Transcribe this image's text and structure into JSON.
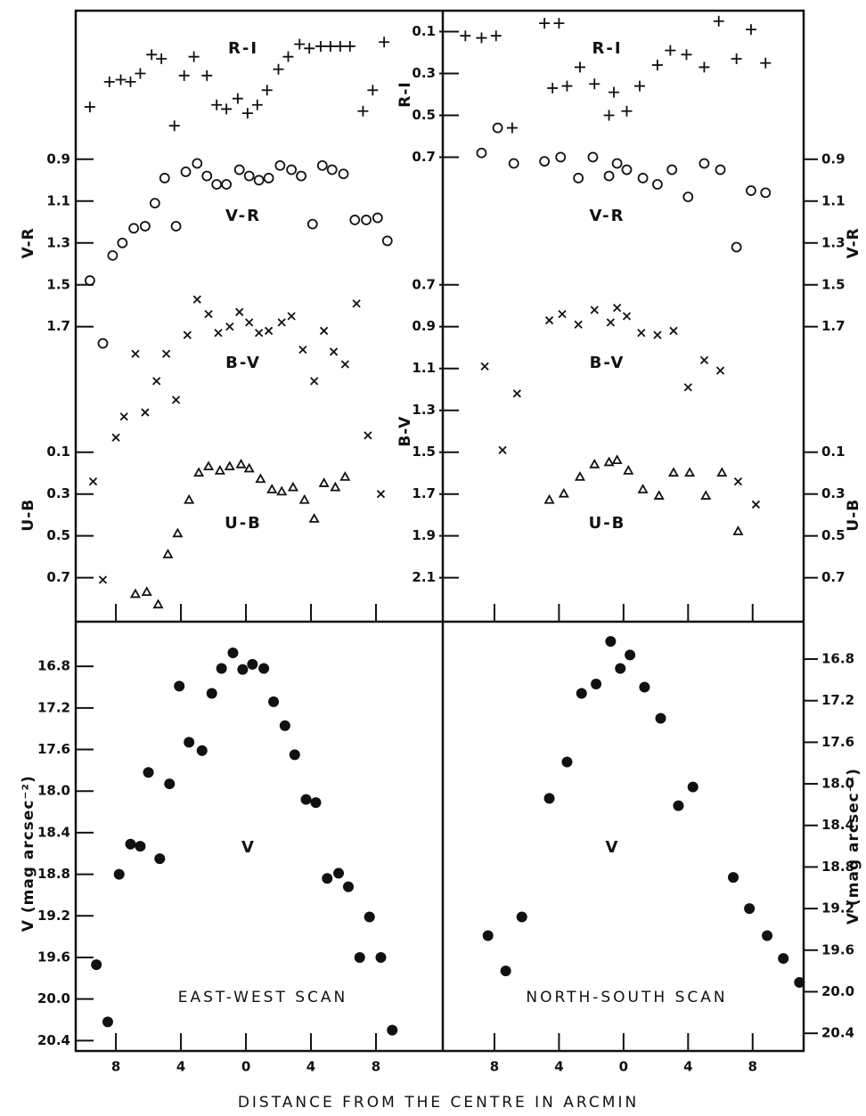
{
  "xlabel": "DISTANCE FROM THE CENTRE IN ARCMIN",
  "chart_data": [
    {
      "type": "scatter",
      "xlim": [
        -10.47,
        12.11
      ],
      "axes": [
        {
          "label": "V-R",
          "side": "left",
          "ylim": [
            3.11,
            0.19
          ],
          "yticks": [
            0.9,
            1.1,
            1.3,
            1.5,
            1.7
          ]
        },
        {
          "label": "U-B",
          "side": "left",
          "ylim": [
            0.91,
            -2.01
          ],
          "yticks": [
            0.1,
            0.3,
            0.5,
            0.7
          ]
        }
      ],
      "series": [
        {
          "name": "R-I",
          "marker": "plus",
          "ylim": [
            2.92,
            0
          ],
          "x": [
            -9.6,
            -8.4,
            -7.7,
            -7.1,
            -6.5,
            -5.8,
            -5.2,
            -4.4,
            -3.8,
            -3.2,
            -2.4,
            -1.8,
            -1.2,
            -0.5,
            0.1,
            0.7,
            1.3,
            2.0,
            2.6,
            3.3,
            3.9,
            4.6,
            5.2,
            5.8,
            6.4,
            7.2,
            7.8,
            8.5
          ],
          "values": [
            0.46,
            0.34,
            0.33,
            0.34,
            0.3,
            0.21,
            0.23,
            0.55,
            0.31,
            0.22,
            0.31,
            0.45,
            0.47,
            0.42,
            0.49,
            0.45,
            0.38,
            0.28,
            0.22,
            0.16,
            0.18,
            0.17,
            0.17,
            0.17,
            0.17,
            0.48,
            0.38,
            0.15
          ]
        },
        {
          "name": "V-R",
          "marker": "circle",
          "ylim": [
            3.11,
            0.19
          ],
          "x": [
            -9.6,
            -8.8,
            -8.2,
            -7.6,
            -6.9,
            -6.2,
            -5.6,
            -5.0,
            -4.3,
            -3.7,
            -3.0,
            -2.4,
            -1.8,
            -1.2,
            -0.4,
            0.2,
            0.8,
            1.4,
            2.1,
            2.8,
            3.4,
            4.1,
            4.7,
            5.3,
            6.0,
            6.7,
            7.4,
            8.1,
            8.7
          ],
          "values": [
            1.48,
            1.78,
            1.36,
            1.3,
            1.23,
            1.22,
            1.11,
            0.99,
            1.22,
            0.96,
            0.92,
            0.98,
            1.02,
            1.02,
            0.95,
            0.98,
            1.0,
            0.99,
            0.93,
            0.95,
            0.98,
            1.21,
            0.93,
            0.95,
            0.97,
            1.19,
            1.19,
            1.18,
            1.29
          ]
        },
        {
          "name": "B-V",
          "marker": "cross",
          "ylim": [
            2.31,
            -0.61
          ],
          "x": [
            -9.4,
            -8.8,
            -8.0,
            -7.5,
            -6.8,
            -6.2,
            -5.5,
            -4.9,
            -4.3,
            -3.6,
            -3.0,
            -2.3,
            -1.7,
            -1.0,
            -0.4,
            0.2,
            0.8,
            1.4,
            2.2,
            2.8,
            3.5,
            4.2,
            4.8,
            5.4,
            6.1,
            6.8,
            7.5,
            8.3
          ],
          "values": [
            1.64,
            2.11,
            1.43,
            1.33,
            1.03,
            1.31,
            1.16,
            1.03,
            1.25,
            0.94,
            0.77,
            0.84,
            0.93,
            0.9,
            0.83,
            0.88,
            0.93,
            0.92,
            0.88,
            0.85,
            1.01,
            1.16,
            0.92,
            1.02,
            1.08,
            0.79,
            1.42,
            1.7
          ]
        },
        {
          "name": "U-B",
          "marker": "triangle",
          "ylim": [
            0.91,
            -2.01
          ],
          "x": [
            -6.8,
            -6.1,
            -5.4,
            -4.8,
            -4.2,
            -3.5,
            -2.9,
            -2.3,
            -1.6,
            -1.0,
            -0.3,
            0.2,
            0.9,
            1.6,
            2.2,
            2.9,
            3.6,
            4.2,
            4.8,
            5.5,
            6.1
          ],
          "values": [
            0.78,
            0.77,
            0.83,
            0.59,
            0.49,
            0.33,
            0.2,
            0.17,
            0.19,
            0.17,
            0.16,
            0.18,
            0.23,
            0.28,
            0.29,
            0.27,
            0.33,
            0.42,
            0.25,
            0.27,
            0.22
          ]
        }
      ]
    },
    {
      "type": "scatter",
      "xlim": [
        -11.2,
        11.16
      ],
      "axes": [
        {
          "label": "R-I",
          "side": "inner",
          "ylim": [
            2.92,
            0
          ],
          "yticks": [
            0.1,
            0.3,
            0.5,
            0.7
          ]
        },
        {
          "label": "B-V",
          "side": "inner",
          "ylim": [
            2.31,
            -0.61
          ],
          "yticks": [
            0.7,
            0.9,
            1.1,
            1.3,
            1.5,
            1.7,
            1.9,
            2.1
          ]
        },
        {
          "label": "V-R",
          "side": "right",
          "ylim": [
            3.11,
            0.19
          ],
          "yticks": [
            0.9,
            1.1,
            1.3,
            1.5,
            1.7
          ]
        },
        {
          "label": "U-B",
          "side": "right",
          "ylim": [
            0.91,
            -2.01
          ],
          "yticks": [
            0.1,
            0.3,
            0.5,
            0.7
          ]
        }
      ],
      "series": [
        {
          "name": "R-I",
          "marker": "plus",
          "ylim": [
            2.92,
            0
          ],
          "x": [
            -9.8,
            -8.8,
            -7.9,
            -6.9,
            -4.9,
            -4.4,
            -4.0,
            -3.5,
            -2.7,
            -1.8,
            -0.9,
            -0.6,
            0.2,
            1.0,
            2.1,
            2.9,
            3.9,
            5.0,
            5.9,
            7.0,
            7.9,
            8.8
          ],
          "values": [
            0.12,
            0.13,
            0.12,
            0.56,
            0.06,
            0.37,
            0.06,
            0.36,
            0.27,
            0.35,
            0.5,
            0.39,
            0.48,
            0.36,
            0.26,
            0.19,
            0.21,
            0.27,
            0.05,
            0.23,
            0.09,
            0.25
          ]
        },
        {
          "name": "V-R",
          "marker": "circle",
          "ylim": [
            3.11,
            0.19
          ],
          "x": [
            -8.8,
            -7.8,
            -6.8,
            -4.9,
            -3.9,
            -2.8,
            -1.9,
            -0.9,
            -0.4,
            0.2,
            1.2,
            2.1,
            3.0,
            4.0,
            5.0,
            6.0,
            7.0,
            7.9,
            8.8
          ],
          "values": [
            0.87,
            0.75,
            0.92,
            0.91,
            0.89,
            0.99,
            0.89,
            0.98,
            0.92,
            0.95,
            0.99,
            1.02,
            0.95,
            1.08,
            0.92,
            0.95,
            1.32,
            1.05,
            1.06
          ]
        },
        {
          "name": "B-V",
          "marker": "cross",
          "ylim": [
            2.31,
            -0.61
          ],
          "x": [
            -8.6,
            -7.5,
            -6.6,
            -4.6,
            -3.8,
            -2.8,
            -1.8,
            -0.8,
            -0.4,
            0.2,
            1.1,
            2.1,
            3.1,
            4.0,
            5.0,
            6.0,
            7.1,
            8.2
          ],
          "values": [
            1.09,
            1.49,
            1.22,
            0.87,
            0.84,
            0.89,
            0.82,
            0.88,
            0.81,
            0.85,
            0.93,
            0.94,
            0.92,
            1.19,
            1.06,
            1.11,
            1.64,
            1.75
          ]
        },
        {
          "name": "U-B",
          "marker": "triangle",
          "ylim": [
            0.91,
            -2.01
          ],
          "x": [
            -4.6,
            -3.7,
            -2.7,
            -1.8,
            -0.9,
            -0.4,
            0.3,
            1.2,
            2.2,
            3.1,
            4.1,
            5.1,
            6.1,
            7.1
          ],
          "values": [
            0.33,
            0.3,
            0.22,
            0.16,
            0.15,
            0.14,
            0.19,
            0.28,
            0.31,
            0.2,
            0.2,
            0.31,
            0.2,
            0.48
          ]
        }
      ]
    },
    {
      "type": "scatter",
      "annotation": "EAST-WEST SCAN",
      "xlim": [
        -10.47,
        12.11
      ],
      "xticks": [
        {
          "value": -8,
          "label": "8"
        },
        {
          "value": -4,
          "label": "4"
        },
        0,
        4,
        8
      ],
      "axes": [
        {
          "label": "V (mag arcsec⁻²)",
          "side": "left",
          "ylim": [
            20.5,
            16.37
          ],
          "yticks": [
            16.8,
            17.2,
            17.6,
            {
              "value": 18,
              "label": "18.0"
            },
            18.4,
            18.8,
            19.2,
            19.6,
            {
              "value": 20,
              "label": "20.0"
            },
            20.4
          ]
        }
      ],
      "series": [
        {
          "name": "V",
          "marker": "dot",
          "ylim": [
            20.5,
            16.37
          ],
          "x": [
            -9.2,
            -8.5,
            -7.8,
            -7.1,
            -6.5,
            -6.0,
            -5.3,
            -4.7,
            -4.1,
            -3.5,
            -2.7,
            -2.1,
            -1.5,
            -0.8,
            -0.2,
            0.4,
            1.1,
            1.7,
            2.4,
            3.0,
            3.7,
            4.3,
            5.0,
            5.7,
            6.3,
            7.0,
            7.6,
            8.3,
            9.0
          ],
          "values": [
            19.67,
            20.22,
            18.8,
            18.51,
            18.53,
            17.82,
            18.65,
            17.93,
            16.99,
            17.53,
            17.61,
            17.06,
            16.82,
            16.67,
            16.83,
            16.78,
            16.82,
            17.14,
            17.37,
            17.65,
            18.08,
            18.11,
            18.84,
            18.79,
            18.92,
            19.6,
            19.21,
            19.6,
            20.3
          ]
        }
      ]
    },
    {
      "type": "scatter",
      "annotation": "NORTH-SOUTH SCAN",
      "xlim": [
        -11.2,
        11.16
      ],
      "xticks": [
        {
          "value": -8,
          "label": "8"
        },
        {
          "value": -4,
          "label": "4"
        },
        0,
        4,
        8
      ],
      "axes": [
        {
          "label": "V (mag arcsec⁻²)",
          "side": "right",
          "ylim": [
            20.57,
            16.44
          ],
          "yticks": [
            16.8,
            17.2,
            17.6,
            {
              "value": 18,
              "label": "18.0"
            },
            18.4,
            18.8,
            19.2,
            19.6,
            {
              "value": 20,
              "label": "20.0"
            },
            20.4
          ]
        }
      ],
      "series": [
        {
          "name": "V",
          "marker": "dot",
          "ylim": [
            20.57,
            16.44
          ],
          "x": [
            -8.4,
            -7.3,
            -6.3,
            -4.6,
            -3.5,
            -2.6,
            -1.7,
            -0.8,
            -0.2,
            0.4,
            1.3,
            2.3,
            3.4,
            4.3,
            6.8,
            7.8,
            8.9,
            9.9,
            10.9
          ],
          "values": [
            19.46,
            19.8,
            19.28,
            18.14,
            17.79,
            17.13,
            17.04,
            16.63,
            16.89,
            16.76,
            17.07,
            17.37,
            18.21,
            18.03,
            18.9,
            19.2,
            19.46,
            19.68,
            19.91
          ]
        }
      ]
    }
  ]
}
